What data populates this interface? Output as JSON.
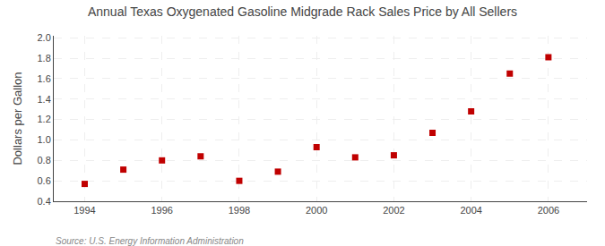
{
  "chart_data": {
    "type": "scatter",
    "title": "Annual Texas Oxygenated Gasoline Midgrade Rack Sales Price by All Sellers",
    "ylabel": "Dollars per Gallon",
    "annotations": [
      "Source: U.S. Energy Information Administration"
    ],
    "x": [
      1994,
      1995,
      1996,
      1997,
      1998,
      1999,
      2000,
      2001,
      2002,
      2003,
      2004,
      2005,
      2006
    ],
    "values": [
      0.57,
      0.71,
      0.8,
      0.84,
      0.6,
      0.69,
      0.93,
      0.83,
      0.85,
      1.07,
      1.28,
      1.65,
      1.81
    ],
    "xlim": [
      1993.2,
      2007.0
    ],
    "ylim": [
      0.4,
      2.02
    ],
    "xticks": [
      1994,
      1996,
      1998,
      2000,
      2002,
      2004,
      2006
    ],
    "yticks": [
      0.4,
      0.6,
      0.8,
      {
        "value": 1.0,
        "label": "1.0"
      },
      1.2,
      1.4,
      1.6,
      1.8,
      {
        "value": 2.0,
        "label": "2.0"
      }
    ],
    "color": "#c00000",
    "marker": "square",
    "grid": true
  }
}
